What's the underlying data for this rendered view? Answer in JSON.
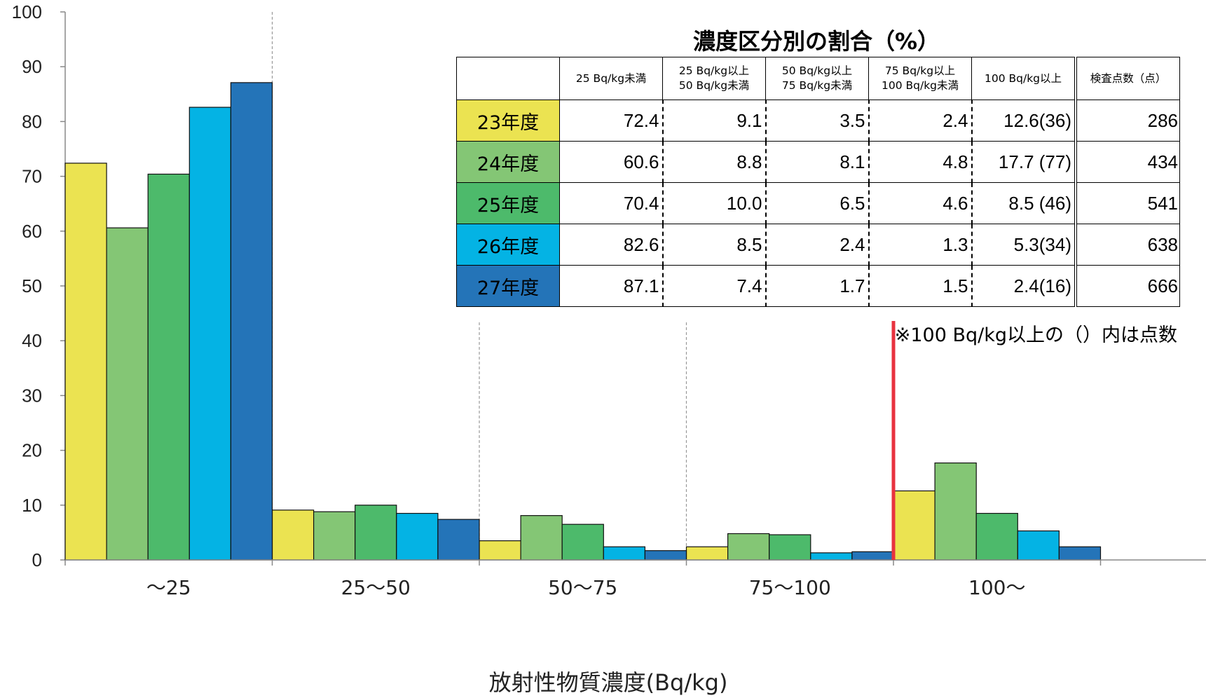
{
  "chart_data": {
    "type": "bar",
    "xlabel": "放射性物質濃度(Bq/kg)",
    "ylabel": "",
    "ylim": [
      0,
      100
    ],
    "yticks": [
      "0",
      "10",
      "20",
      "30",
      "40",
      "50",
      "60",
      "70",
      "80",
      "90",
      "100"
    ],
    "categories": [
      "～25",
      "25～50",
      "50～75",
      "75～100",
      "100～"
    ],
    "series": [
      {
        "name": "23年度",
        "color": "#ebe351",
        "values": [
          72.4,
          9.1,
          3.5,
          2.4,
          12.6
        ]
      },
      {
        "name": "24年度",
        "color": "#84c675",
        "values": [
          60.6,
          8.8,
          8.1,
          4.8,
          17.7
        ]
      },
      {
        "name": "25年度",
        "color": "#4dba6b",
        "values": [
          70.4,
          10.0,
          6.5,
          4.6,
          8.5
        ]
      },
      {
        "name": "26年度",
        "color": "#04b3e4",
        "values": [
          82.6,
          8.5,
          2.4,
          1.3,
          5.3
        ]
      },
      {
        "name": "27年度",
        "color": "#2474b8",
        "values": [
          87.1,
          7.4,
          1.7,
          1.5,
          2.4
        ]
      }
    ],
    "threshold_line_color": "#e8323f",
    "grid": false
  },
  "table": {
    "title": "濃度区分別の割合（%）",
    "header": {
      "col0": "",
      "col1": "25 Bq/kg未満",
      "col2a": "25 Bq/kg以上",
      "col2b": "50 Bq/kg未満",
      "col3a": "50 Bq/kg以上",
      "col3b": "75 Bq/kg未満",
      "col4a": "75 Bq/kg以上",
      "col4b": "100 Bq/kg未満",
      "col5": "100 Bq/kg以上",
      "col6": "検査点数（点）"
    },
    "rows": [
      {
        "year": "23年度",
        "c1": "72.4",
        "c2": "9.1",
        "c3": "3.5",
        "c4": "2.4",
        "c5": "12.6(36)",
        "count": "286"
      },
      {
        "year": "24年度",
        "c1": "60.6",
        "c2": "8.8",
        "c3": "8.1",
        "c4": "4.8",
        "c5": "17.7 (77)",
        "count": "434"
      },
      {
        "year": "25年度",
        "c1": "70.4",
        "c2": "10.0",
        "c3": "6.5",
        "c4": "4.6",
        "c5": "8.5 (46)",
        "count": "541"
      },
      {
        "year": "26年度",
        "c1": "82.6",
        "c2": "8.5",
        "c3": "2.4",
        "c4": "1.3",
        "c5": "5.3(34)",
        "count": "638"
      },
      {
        "year": "27年度",
        "c1": "87.1",
        "c2": "7.4",
        "c3": "1.7",
        "c4": "1.5",
        "c5": "2.4(16)",
        "count": "666"
      }
    ],
    "note": "※100 Bq/kg以上の（）内は点数"
  }
}
